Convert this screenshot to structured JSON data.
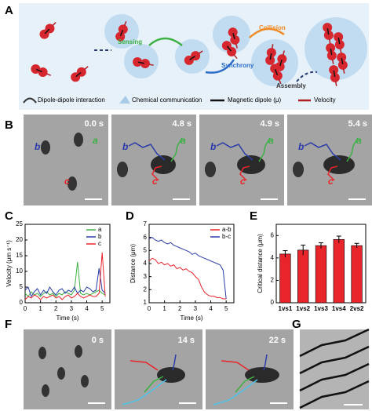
{
  "panel_labels": [
    "A",
    "B",
    "C",
    "D",
    "E",
    "F",
    "G"
  ],
  "panel_a": {
    "steps": [
      "Sensing",
      "Synchrony",
      "Collision",
      "Assembly"
    ],
    "legend": [
      "Dipole-dipole interaction",
      "Chemical communication",
      "Magnetic dipole (μ)",
      "Velocity"
    ]
  },
  "panel_b": {
    "times": [
      "0.0 s",
      "4.8 s",
      "4.9 s",
      "5.4 s"
    ],
    "particles": [
      "b",
      "a",
      "c"
    ]
  },
  "panel_f": {
    "times": [
      "0 s",
      "14 s",
      "22 s"
    ]
  },
  "chart_data": [
    {
      "type": "line",
      "xlabel": "Time (s)",
      "ylabel": "Velocity (μm s⁻¹)",
      "x": [
        0,
        0.2,
        0.4,
        0.6,
        0.8,
        1,
        1.2,
        1.4,
        1.6,
        1.8,
        2,
        2.2,
        2.4,
        2.6,
        2.8,
        3,
        3.2,
        3.4,
        3.6,
        3.8,
        4,
        4.2,
        4.4,
        4.6,
        4.8,
        5,
        5.2
      ],
      "series": [
        {
          "name": "a",
          "color": "#3cb043",
          "values": [
            3,
            2,
            3.5,
            2.5,
            3,
            2,
            3,
            3.5,
            2.5,
            3,
            2,
            3,
            2.5,
            3.5,
            3,
            2.5,
            4,
            13,
            3,
            2.5,
            3,
            2.5,
            3,
            3.5,
            4,
            3,
            2.5
          ]
        },
        {
          "name": "b",
          "color": "#2a3ca8",
          "values": [
            4,
            5,
            2,
            3.5,
            4.5,
            2.5,
            4,
            3,
            5,
            3.5,
            2.5,
            4,
            4.5,
            3,
            4,
            3.5,
            5,
            3,
            4,
            3.5,
            5,
            4.5,
            3.5,
            4,
            11,
            4,
            3
          ]
        },
        {
          "name": "c",
          "color": "#e8252b",
          "values": [
            1,
            2,
            1.5,
            2.5,
            2,
            1,
            2,
            1.5,
            2,
            2.5,
            1.5,
            2,
            1,
            2,
            2.5,
            1.5,
            2,
            3,
            2,
            1.5,
            2,
            2.5,
            2,
            2,
            3,
            16,
            2
          ]
        }
      ],
      "xlim": [
        0,
        5.5
      ],
      "xticks": [
        0,
        1,
        2,
        3,
        4,
        5
      ],
      "ylim": [
        0,
        25
      ],
      "yticks": [
        0,
        5,
        10,
        15,
        20,
        25
      ]
    },
    {
      "type": "line",
      "xlabel": "Time (s)",
      "ylabel": "Distance (μm)",
      "x": [
        0,
        0.2,
        0.4,
        0.6,
        0.8,
        1,
        1.2,
        1.4,
        1.6,
        1.8,
        2,
        2.2,
        2.4,
        2.6,
        2.8,
        3,
        3.2,
        3.4,
        3.6,
        3.8,
        4,
        4.2,
        4.4,
        4.6,
        4.8,
        5
      ],
      "series": [
        {
          "name": "a-b",
          "color": "#e8252b",
          "values": [
            4.2,
            4.4,
            4.3,
            4.0,
            4.1,
            3.9,
            4.0,
            3.8,
            3.9,
            3.6,
            3.7,
            3.5,
            3.6,
            3.4,
            3.3,
            3.0,
            2.8,
            2.2,
            1.8,
            1.6,
            1.5,
            1.5,
            1.4,
            1.4,
            1.3,
            1.3
          ]
        },
        {
          "name": "b-c",
          "color": "#2a3ca8",
          "values": [
            5.9,
            6.0,
            5.8,
            5.7,
            5.8,
            5.6,
            5.5,
            5.6,
            5.4,
            5.3,
            5.2,
            5.1,
            5.0,
            4.9,
            4.7,
            4.8,
            4.6,
            4.5,
            4.4,
            4.3,
            4.2,
            4.1,
            4.0,
            3.9,
            3.5,
            1.3
          ]
        }
      ],
      "xlim": [
        0,
        5.5
      ],
      "xticks": [
        0,
        1,
        2,
        3,
        4,
        5
      ],
      "ylim": [
        1,
        7
      ],
      "yticks": [
        1,
        2,
        3,
        4,
        5,
        6,
        7
      ]
    },
    {
      "type": "bar",
      "ylabel": "Critical distance (μm)",
      "categories": [
        "1vs1",
        "1vs2",
        "1vs3",
        "1vs4",
        "2vs2"
      ],
      "values": [
        4.35,
        4.7,
        5.1,
        5.65,
        5.1
      ],
      "errors": [
        0.3,
        0.45,
        0.25,
        0.3,
        0.2
      ],
      "color": "#e8252b",
      "ylim": [
        0,
        7
      ],
      "yticks": [
        0,
        2,
        4,
        6
      ]
    }
  ]
}
